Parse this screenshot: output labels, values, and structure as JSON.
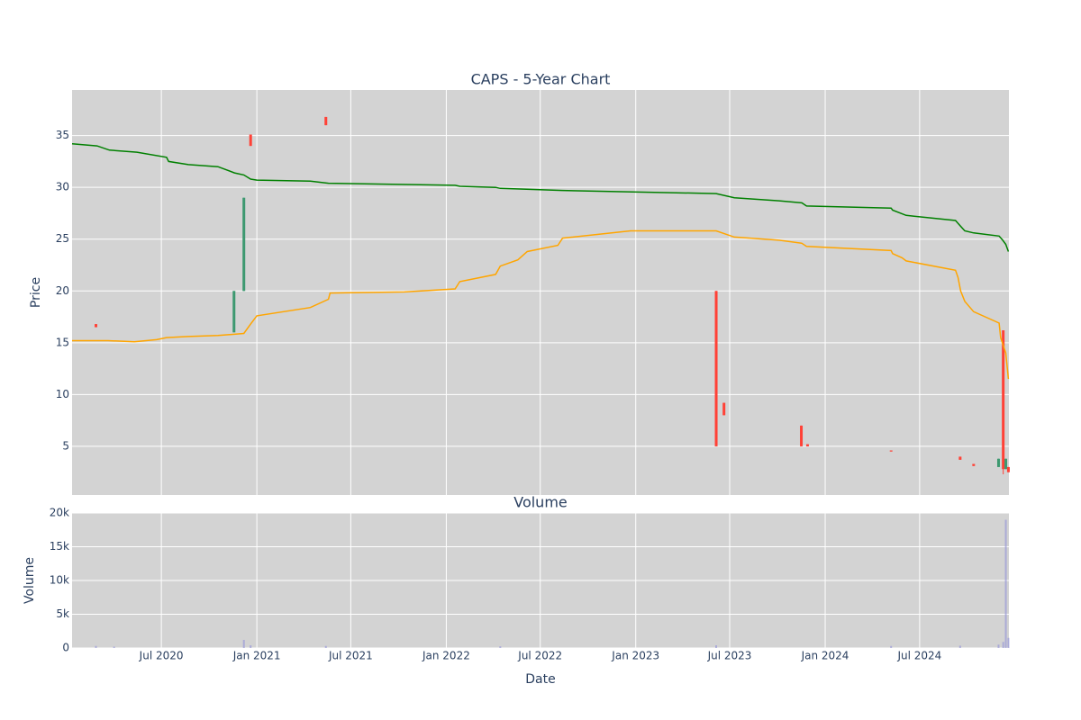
{
  "chart_data": [
    {
      "type": "candlestick",
      "title": "CAPS - 5-Year Chart",
      "y_label": "Price",
      "xlim": [
        "2020-01-11",
        "2024-12-20"
      ],
      "ylim": [
        0.3,
        39.4
      ],
      "yticks": [
        5,
        10,
        15,
        20,
        25,
        30,
        35
      ],
      "grid": true,
      "increasing_color": "#3d9970",
      "decreasing_color": "#ff4136",
      "x": [
        "2020-02-26",
        "2020-11-18",
        "2020-12-07",
        "2020-12-20",
        "2021-05-14",
        "2023-06-05",
        "2023-06-20",
        "2023-11-16",
        "2023-11-28",
        "2024-05-07",
        "2024-09-17",
        "2024-10-13",
        "2024-11-30",
        "2024-12-09",
        "2024-12-14",
        "2024-12-19"
      ],
      "open": [
        16.8,
        16.0,
        20.0,
        35.1,
        36.8,
        20.0,
        9.2,
        7.0,
        5.2,
        4.6,
        4.0,
        3.3,
        3.0,
        16.2,
        2.8,
        3.0
      ],
      "high": [
        16.8,
        20.0,
        29.0,
        35.1,
        36.8,
        20.0,
        9.2,
        7.0,
        5.2,
        4.6,
        4.0,
        3.3,
        3.8,
        16.2,
        3.8,
        3.0
      ],
      "low": [
        16.5,
        16.0,
        20.0,
        34.0,
        36.0,
        5.0,
        8.0,
        5.0,
        5.0,
        4.5,
        3.7,
        3.1,
        3.0,
        2.3,
        2.8,
        2.5
      ],
      "close": [
        16.5,
        20.0,
        29.0,
        34.0,
        36.0,
        5.0,
        8.0,
        5.0,
        5.0,
        4.5,
        3.7,
        3.1,
        3.8,
        2.8,
        3.8,
        2.5
      ],
      "series": [
        {
          "color": "#008000",
          "x": [
            "2020-01-11",
            "2020-02-28",
            "2020-03-23",
            "2020-05-15",
            "2020-07-11",
            "2020-07-15",
            "2020-08-22",
            "2020-10-18",
            "2020-11-19",
            "2020-12-07",
            "2020-12-20",
            "2021-01-01",
            "2021-04-14",
            "2021-05-19",
            "2022-01-18",
            "2022-01-27",
            "2022-04-06",
            "2022-04-15",
            "2022-08-13",
            "2023-06-05",
            "2023-07-10",
            "2023-10-04",
            "2023-11-17",
            "2023-11-26",
            "2024-05-07",
            "2024-05-10",
            "2024-06-05",
            "2024-09-08",
            "2024-09-17",
            "2024-09-26",
            "2024-10-13",
            "2024-12-01",
            "2024-12-08",
            "2024-12-14",
            "2024-12-19"
          ],
          "values": [
            34.2,
            34.0,
            33.6,
            33.4,
            32.9,
            32.5,
            32.2,
            32.0,
            31.4,
            31.2,
            30.8,
            30.7,
            30.6,
            30.4,
            30.2,
            30.1,
            30.0,
            29.9,
            29.7,
            29.4,
            29.0,
            28.7,
            28.5,
            28.2,
            28.0,
            27.8,
            27.3,
            26.8,
            26.3,
            25.8,
            25.6,
            25.3,
            24.9,
            24.5,
            23.8
          ]
        },
        {
          "color": "#ffa500",
          "x": [
            "2020-01-11",
            "2020-03-20",
            "2020-05-10",
            "2020-06-22",
            "2020-07-11",
            "2020-08-22",
            "2020-10-18",
            "2020-12-07",
            "2020-12-20",
            "2021-01-01",
            "2021-04-14",
            "2021-05-19",
            "2021-05-22",
            "2021-10-12",
            "2022-01-18",
            "2022-01-27",
            "2022-04-06",
            "2022-04-15",
            "2022-05-19",
            "2022-06-06",
            "2022-08-04",
            "2022-08-13",
            "2022-12-22",
            "2023-06-05",
            "2023-07-10",
            "2023-10-04",
            "2023-11-17",
            "2023-11-26",
            "2024-05-07",
            "2024-05-10",
            "2024-05-28",
            "2024-06-05",
            "2024-09-08",
            "2024-09-13",
            "2024-09-18",
            "2024-09-26",
            "2024-10-13",
            "2024-12-01",
            "2024-12-04",
            "2024-12-14",
            "2024-12-19"
          ],
          "values": [
            15.2,
            15.2,
            15.1,
            15.3,
            15.5,
            15.6,
            15.7,
            15.9,
            16.8,
            17.6,
            18.4,
            19.2,
            19.8,
            19.9,
            20.2,
            20.9,
            21.6,
            22.4,
            23.0,
            23.8,
            24.4,
            25.1,
            25.8,
            25.8,
            25.2,
            24.9,
            24.6,
            24.3,
            23.9,
            23.6,
            23.2,
            22.9,
            22.0,
            21.3,
            20.0,
            19.0,
            18.0,
            16.9,
            15.5,
            14.0,
            11.5
          ]
        }
      ]
    },
    {
      "type": "bar",
      "title": "Volume",
      "y_label": "Volume",
      "x_label": "Date",
      "xlim": [
        "2020-01-11",
        "2024-12-20"
      ],
      "ylim": [
        0,
        20000
      ],
      "yticks": [
        0,
        {
          "value": 5000,
          "label": "5k"
        },
        {
          "value": 10000,
          "label": "10k"
        },
        {
          "value": 15000,
          "label": "15k"
        },
        {
          "value": 20000,
          "label": "20k"
        }
      ],
      "xticks": [
        {
          "value": "2020-07-01",
          "label": "Jul 2020"
        },
        {
          "value": "2021-01-01",
          "label": "Jan 2021"
        },
        {
          "value": "2021-07-01",
          "label": "Jul 2021"
        },
        {
          "value": "2022-01-01",
          "label": "Jan 2022"
        },
        {
          "value": "2022-07-01",
          "label": "Jul 2022"
        },
        {
          "value": "2023-01-01",
          "label": "Jan 2023"
        },
        {
          "value": "2023-07-01",
          "label": "Jul 2023"
        },
        {
          "value": "2024-01-01",
          "label": "Jan 2024"
        },
        {
          "value": "2024-07-01",
          "label": "Jul 2024"
        }
      ],
      "grid": true,
      "color": "#9a9ad8",
      "x": [
        "2020-02-26",
        "2020-04-01",
        "2020-12-07",
        "2020-12-20",
        "2021-05-14",
        "2022-04-15",
        "2023-06-05",
        "2024-05-07",
        "2024-09-17",
        "2024-11-30",
        "2024-12-09",
        "2024-12-14",
        "2024-12-19"
      ],
      "values": [
        300,
        200,
        1200,
        400,
        300,
        250,
        400,
        300,
        350,
        500,
        900,
        19000,
        1500
      ]
    }
  ]
}
